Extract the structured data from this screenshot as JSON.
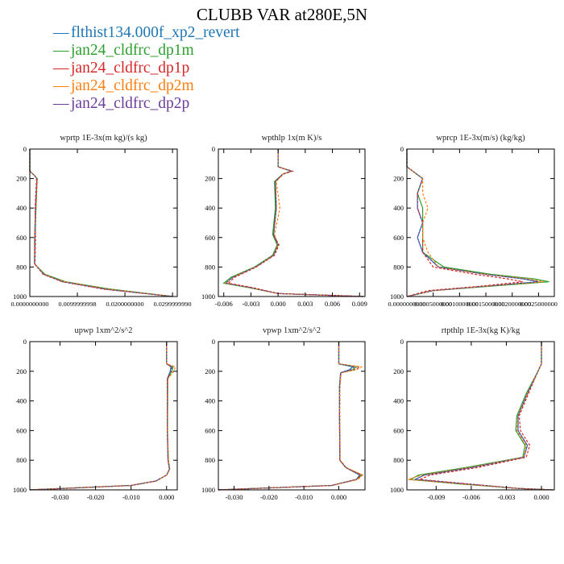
{
  "title": "CLUBB VAR at280E,5N",
  "legend": [
    {
      "label": "flthist134.000f_xp2_revert",
      "color": "#1f77b4"
    },
    {
      "label": "jan24_cldfrc_dp1m",
      "color": "#2ca02c"
    },
    {
      "label": "jan24_cldfrc_dp1p",
      "color": "#d62728"
    },
    {
      "label": "jan24_cldfrc_dp2m",
      "color": "#ff7f0e"
    },
    {
      "label": "jan24_cldfrc_dp2p",
      "color": "#6a3d9a"
    }
  ],
  "chart_data": [
    {
      "type": "line",
      "title": "wprtp  1E-3x(m kg)/(s kg)",
      "xlim": [
        0,
        0.031
      ],
      "ylim": [
        1000,
        0
      ],
      "xticks": [
        0,
        0.01,
        0.02,
        0.03
      ],
      "xtick_labels": [
        "0.0000000000",
        "0.0099999998",
        "0.0200000000",
        "0.0299999990"
      ],
      "yticks": [
        0,
        200,
        400,
        600,
        800,
        1000
      ],
      "y": [
        0,
        150,
        180,
        200,
        400,
        600,
        780,
        850,
        900,
        950,
        1000
      ],
      "series": [
        {
          "values": [
            0,
            0,
            0.001,
            0.0015,
            0.0012,
            0.001,
            0.001,
            0.003,
            0.007,
            0.016,
            0.03
          ]
        },
        {
          "values": [
            0,
            0,
            0.001,
            0.0015,
            0.0013,
            0.0011,
            0.001,
            0.0032,
            0.0075,
            0.017,
            0.03
          ]
        },
        {
          "values": [
            0,
            0,
            0.001,
            0.0014,
            0.0011,
            0.0012,
            0.0011,
            0.0028,
            0.0068,
            0.0155,
            0.03
          ]
        },
        {
          "values": [
            0,
            0,
            0.001,
            0.0016,
            0.0013,
            0.001,
            0.001,
            0.003,
            0.0072,
            0.0165,
            0.03
          ]
        },
        {
          "values": [
            0,
            0,
            0.001,
            0.0015,
            0.0012,
            0.0011,
            0.001,
            0.0029,
            0.007,
            0.016,
            0.03
          ]
        }
      ]
    },
    {
      "type": "line",
      "title": "wpthlp  1x(m K)/s",
      "xlim": [
        -0.0066,
        0.0096
      ],
      "ylim": [
        1000,
        0
      ],
      "xticks": [
        -0.006,
        -0.003,
        0,
        0.003,
        0.006,
        0.009
      ],
      "xtick_labels": [
        "-0.006",
        "-0.003",
        "0.000",
        "0.003",
        "0.006",
        "0.009"
      ],
      "yticks": [
        0,
        200,
        400,
        600,
        800,
        1000
      ],
      "y": [
        0,
        120,
        150,
        170,
        220,
        400,
        580,
        650,
        720,
        800,
        870,
        910,
        940,
        980,
        1000
      ],
      "series": [
        {
          "values": [
            0,
            0,
            0.0015,
            0.0005,
            -0.0003,
            -0.0002,
            -0.0005,
            0,
            -0.0005,
            -0.0025,
            -0.005,
            -0.0058,
            -0.003,
            0,
            0.0094
          ]
        },
        {
          "values": [
            0,
            0,
            0.0014,
            0.0005,
            -0.0004,
            -0.0003,
            -0.0006,
            -0.0001,
            -0.0006,
            -0.0026,
            -0.0052,
            -0.006,
            -0.0032,
            0,
            0.0094
          ]
        },
        {
          "values": [
            0,
            0,
            0.0016,
            0.0006,
            -0.0003,
            -0.0002,
            -0.0005,
            0.0001,
            -0.0004,
            -0.0024,
            -0.0048,
            -0.0055,
            -0.0028,
            0,
            0.0094
          ]
        },
        {
          "values": [
            0,
            0,
            0.0015,
            0.0005,
            -0.0002,
            0.0002,
            -0.0004,
            0,
            -0.0005,
            -0.0025,
            -0.005,
            -0.0058,
            -0.003,
            0,
            0.0094
          ]
        },
        {
          "values": [
            0,
            0,
            0.0015,
            0.0005,
            -0.0003,
            -0.0002,
            -0.0005,
            0,
            -0.0005,
            -0.0025,
            -0.005,
            -0.0058,
            -0.003,
            0,
            0.0094
          ]
        }
      ]
    },
    {
      "type": "line",
      "title": "wprcp  1E-3x(m/s) (kg/kg)",
      "xlim": [
        0,
        0.0028
      ],
      "ylim": [
        1000,
        0
      ],
      "xticks": [
        0,
        0.0005,
        0.001,
        0.0015,
        0.002,
        0.0025
      ],
      "xtick_labels": [
        "0.0000000000",
        "0.0005000000",
        "0.0010000000",
        "0.0015000000",
        "0.0020000000",
        "0.0025000000"
      ],
      "yticks": [
        0,
        200,
        400,
        600,
        800,
        1000
      ],
      "y": [
        0,
        120,
        200,
        300,
        400,
        500,
        600,
        700,
        800,
        850,
        880,
        900,
        930,
        960,
        1000
      ],
      "series": [
        {
          "values": [
            0,
            0,
            0.0003,
            0.0002,
            0.0002,
            0.0003,
            0.0002,
            0.0003,
            0.0006,
            0.0015,
            0.0022,
            0.0025,
            0.0015,
            0.0005,
            0
          ]
        },
        {
          "values": [
            0,
            0,
            0.0003,
            0.0002,
            0.0003,
            0.0003,
            0.0003,
            0.0003,
            0.0007,
            0.0016,
            0.0024,
            0.0027,
            0.0016,
            0.0005,
            0
          ]
        },
        {
          "values": [
            0,
            0,
            0.0003,
            0.0002,
            0.0002,
            0.0003,
            0.0003,
            0.0003,
            0.0005,
            0.0013,
            0.0019,
            0.0022,
            0.0014,
            0.0004,
            0
          ]
        },
        {
          "values": [
            0,
            0,
            0.0003,
            0.0003,
            0.0004,
            0.0003,
            0.0003,
            0.0004,
            0.0006,
            0.0015,
            0.0023,
            0.0026,
            0.0015,
            0.0005,
            0
          ]
        },
        {
          "values": [
            0,
            0,
            0.0003,
            0.0002,
            0.0002,
            0.0003,
            0.0002,
            0.0003,
            0.0006,
            0.0015,
            0.0022,
            0.0025,
            0.0015,
            0.0005,
            0
          ]
        }
      ]
    },
    {
      "type": "line",
      "title": "upwp  1xm^2/s^2",
      "xlim": [
        -0.0385,
        0.003
      ],
      "ylim": [
        1000,
        0
      ],
      "xticks": [
        -0.03,
        -0.02,
        -0.01,
        0
      ],
      "xtick_labels": [
        "-0.030",
        "-0.020",
        "-0.010",
        "0.000"
      ],
      "yticks": [
        0,
        200,
        400,
        600,
        800,
        1000
      ],
      "y": [
        0,
        150,
        170,
        200,
        250,
        400,
        600,
        800,
        860,
        900,
        940,
        970,
        1000
      ],
      "series": [
        {
          "values": [
            0,
            0,
            0.0012,
            0.001,
            0.0002,
            0.0002,
            0.0002,
            0.0004,
            0.0008,
            0,
            -0.003,
            -0.01,
            -0.0385
          ]
        },
        {
          "values": [
            0,
            0,
            0.0018,
            0.0015,
            0.0003,
            0.0003,
            0.0002,
            0.0005,
            0.0009,
            0,
            -0.003,
            -0.01,
            -0.0385
          ]
        },
        {
          "values": [
            0,
            0,
            0.0015,
            0.0012,
            0.0002,
            0.0002,
            0.0002,
            0.0004,
            0.0008,
            0,
            -0.003,
            -0.01,
            -0.0385
          ]
        },
        {
          "values": [
            0,
            0,
            0.0025,
            0.002,
            0.0004,
            0.0003,
            0.0003,
            0.0005,
            0.0009,
            0,
            -0.003,
            -0.01,
            -0.0385
          ]
        },
        {
          "values": [
            0,
            0,
            0.0014,
            0.0012,
            0.0002,
            0.0002,
            0.0002,
            0.0004,
            0.0008,
            0,
            -0.003,
            -0.01,
            -0.0385
          ]
        }
      ]
    },
    {
      "type": "line",
      "title": "vpwp  1xm^2/s^2",
      "xlim": [
        -0.0345,
        0.0075
      ],
      "ylim": [
        1000,
        0
      ],
      "xticks": [
        -0.03,
        -0.02,
        -0.01,
        0
      ],
      "xtick_labels": [
        "-0.030",
        "-0.020",
        "-0.010",
        "0.000"
      ],
      "yticks": [
        0,
        200,
        400,
        600,
        800,
        1000
      ],
      "y": [
        0,
        150,
        170,
        190,
        210,
        300,
        500,
        800,
        850,
        900,
        930,
        970,
        1000
      ],
      "series": [
        {
          "values": [
            0,
            0,
            0.004,
            0.003,
            0.0005,
            0.0002,
            0.0002,
            0.0003,
            0.002,
            0.006,
            0.005,
            -0.002,
            -0.0345
          ]
        },
        {
          "values": [
            0,
            0,
            0.005,
            0.004,
            0.0006,
            0.0002,
            0.0002,
            0.0003,
            0.002,
            0.0065,
            0.005,
            -0.002,
            -0.0345
          ]
        },
        {
          "values": [
            0,
            0,
            0.006,
            0.0045,
            0.0006,
            0.0003,
            0.0002,
            0.0003,
            0.002,
            0.0068,
            0.005,
            -0.002,
            -0.0345
          ]
        },
        {
          "values": [
            0,
            0,
            0.0065,
            0.005,
            0.0007,
            0.0003,
            0.0003,
            0.0004,
            0.0022,
            0.0068,
            0.0055,
            -0.002,
            -0.0345
          ]
        },
        {
          "values": [
            0,
            0,
            0.0045,
            0.0035,
            0.0005,
            0.0002,
            0.0002,
            0.0003,
            0.002,
            0.006,
            0.005,
            -0.002,
            -0.0345
          ]
        }
      ]
    },
    {
      "type": "line",
      "title": "rtpthlp  1E-3x(kg K)/kg",
      "xlim": [
        -0.0115,
        0.0011
      ],
      "ylim": [
        1000,
        0
      ],
      "xticks": [
        -0.009,
        -0.006,
        -0.003,
        0
      ],
      "xtick_labels": [
        "-0.009",
        "-0.006",
        "-0.003",
        "0.000"
      ],
      "yticks": [
        0,
        200,
        400,
        600,
        800,
        1000
      ],
      "y": [
        0,
        150,
        200,
        350,
        500,
        600,
        700,
        780,
        850,
        900,
        930,
        960,
        990,
        1000
      ],
      "series": [
        {
          "values": [
            0,
            0,
            -0.0003,
            -0.0012,
            -0.002,
            -0.002,
            -0.0012,
            -0.0015,
            -0.006,
            -0.01,
            -0.0108,
            -0.0065,
            -0.002,
            0.001
          ]
        },
        {
          "values": [
            0,
            0,
            -0.0003,
            -0.0013,
            -0.0021,
            -0.0022,
            -0.0014,
            -0.0016,
            -0.0065,
            -0.0105,
            -0.0112,
            -0.007,
            -0.002,
            0.001
          ]
        },
        {
          "values": [
            0,
            0,
            -0.0003,
            -0.0011,
            -0.0019,
            -0.0018,
            -0.001,
            -0.0013,
            -0.0055,
            -0.0095,
            -0.0104,
            -0.0062,
            -0.002,
            0.001
          ]
        },
        {
          "values": [
            0,
            0,
            -0.0003,
            -0.0012,
            -0.002,
            -0.0021,
            -0.0013,
            -0.0015,
            -0.0062,
            -0.0102,
            -0.0114,
            -0.0068,
            -0.002,
            0.001
          ]
        },
        {
          "values": [
            0,
            0,
            -0.0003,
            -0.0012,
            -0.002,
            -0.002,
            -0.0012,
            -0.0015,
            -0.006,
            -0.01,
            -0.0108,
            -0.0065,
            -0.002,
            0.001
          ]
        }
      ]
    }
  ]
}
